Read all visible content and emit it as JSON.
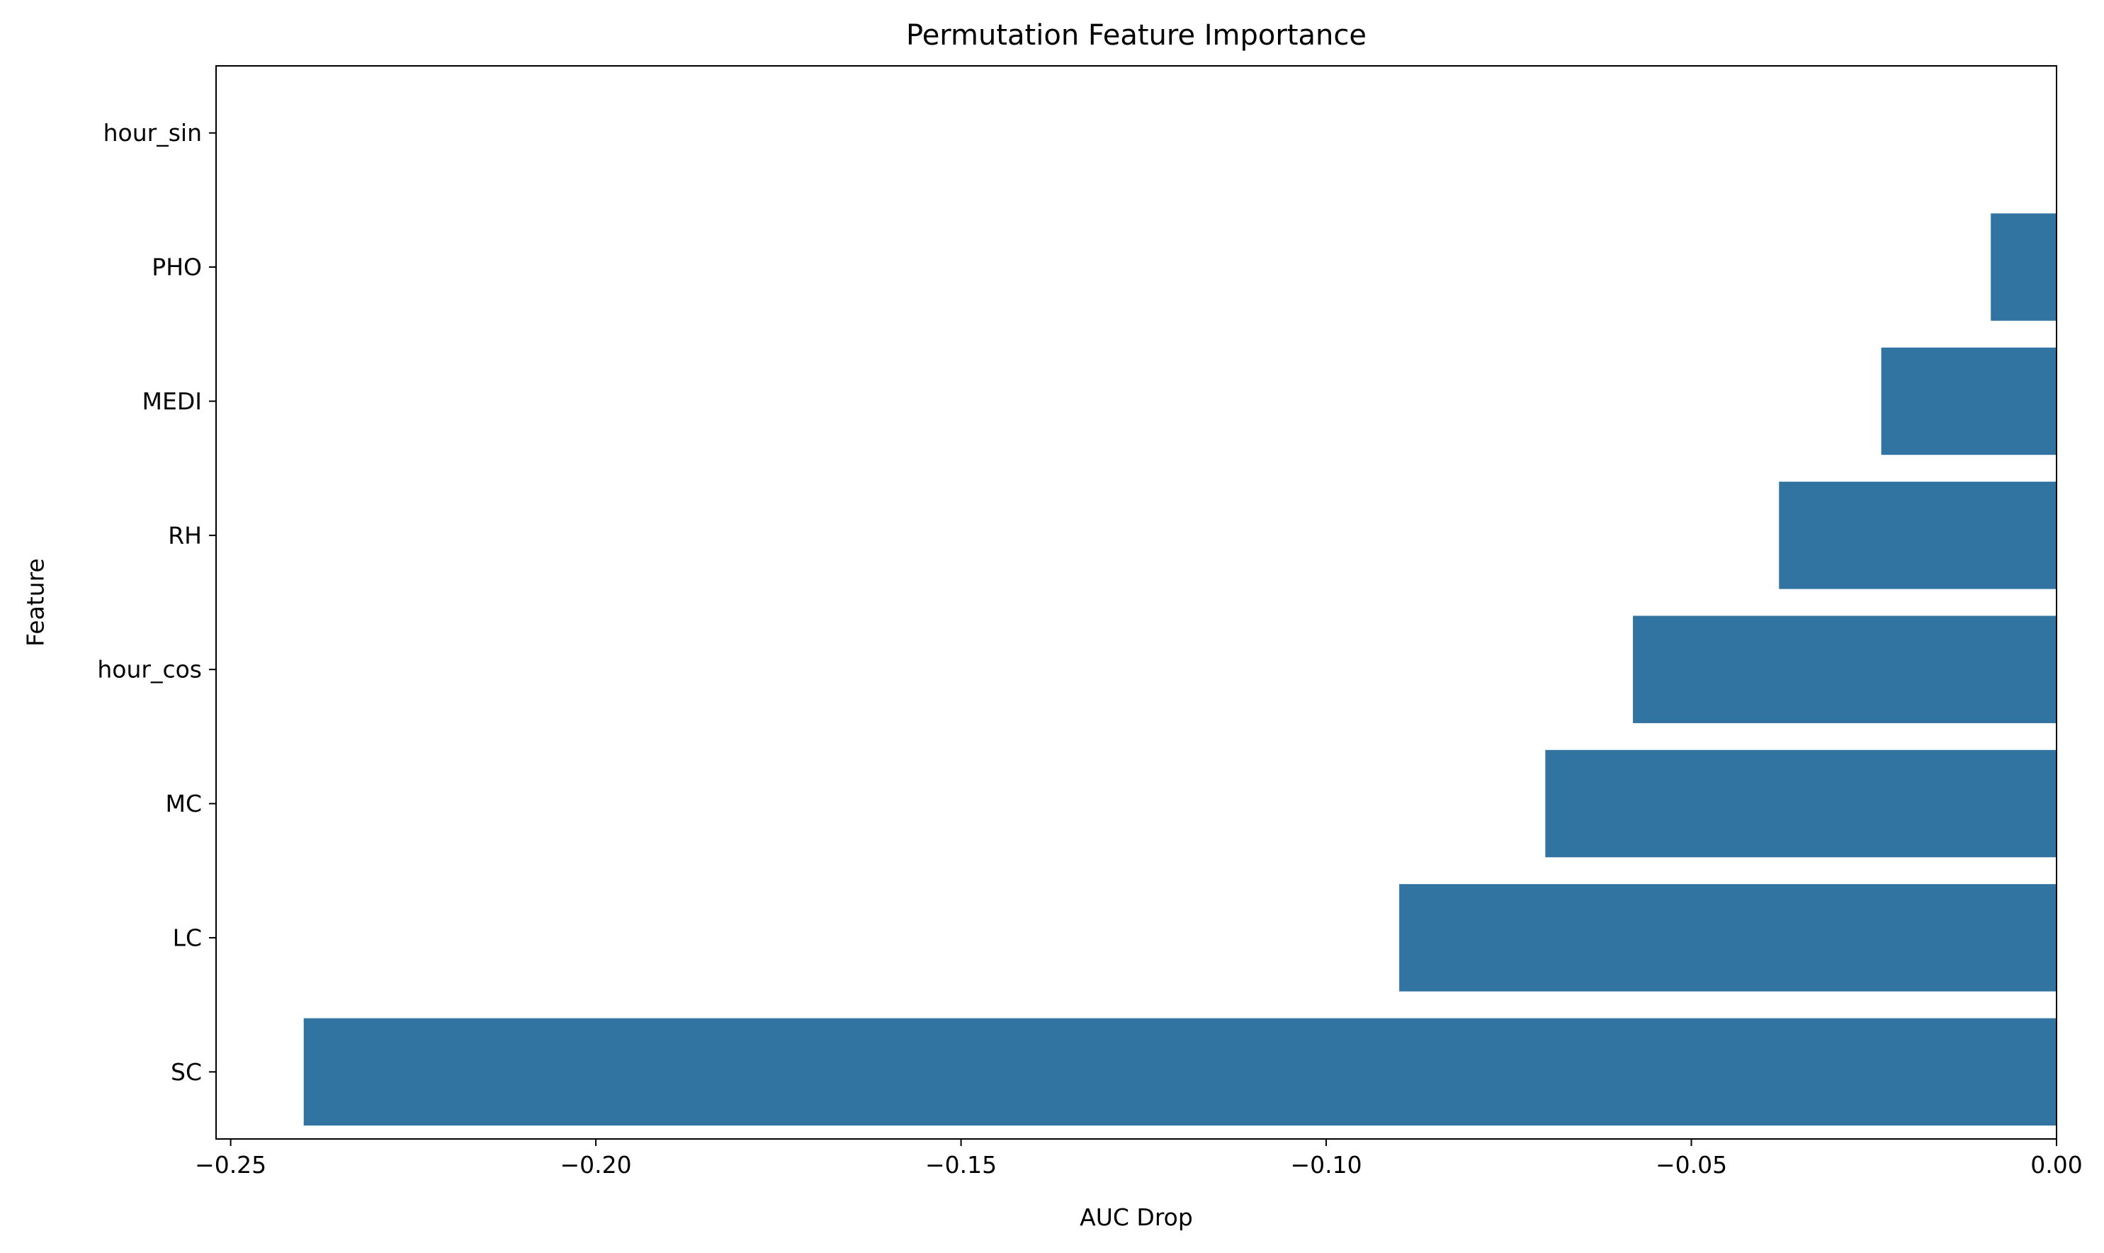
{
  "chart_data": {
    "type": "bar",
    "orientation": "horizontal",
    "title": "Permutation Feature Importance",
    "xlabel": "AUC Drop",
    "ylabel": "Feature",
    "categories": [
      "hour_sin",
      "PHO",
      "MEDI",
      "RH",
      "hour_cos",
      "MC",
      "LC",
      "SC"
    ],
    "values": [
      0.0,
      -0.009,
      -0.024,
      -0.038,
      -0.058,
      -0.07,
      -0.09,
      -0.24
    ],
    "xlim": [
      -0.252,
      0.0
    ],
    "xticks": [
      -0.25,
      -0.2,
      -0.15,
      -0.1,
      -0.05,
      0.0
    ],
    "xtick_labels": [
      "−0.25",
      "−0.20",
      "−0.15",
      "−0.10",
      "−0.05",
      "0.00"
    ],
    "bar_color": "#3274a1",
    "grid": false,
    "legend": "none"
  }
}
